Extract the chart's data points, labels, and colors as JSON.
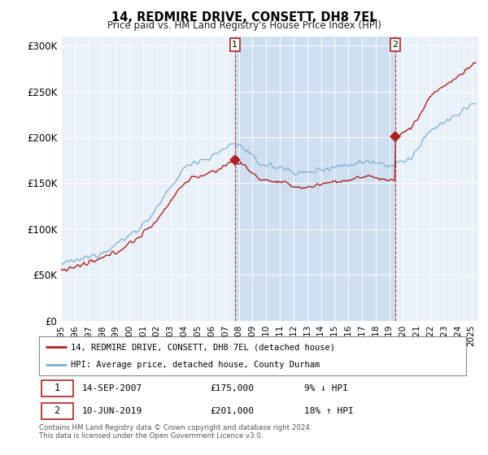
{
  "title": "14, REDMIRE DRIVE, CONSETT, DH8 7EL",
  "subtitle": "Price paid vs. HM Land Registry's House Price Index (HPI)",
  "ylim": [
    0,
    310000
  ],
  "yticks": [
    0,
    50000,
    100000,
    150000,
    200000,
    250000,
    300000
  ],
  "ytick_labels": [
    "£0",
    "£50K",
    "£100K",
    "£150K",
    "£200K",
    "£250K",
    "£300K"
  ],
  "bg_color": "#e8f0f8",
  "shade_color": "#cddff0",
  "hpi_color": "#7bafd4",
  "price_color": "#b22020",
  "annotation1_date": "14-SEP-2007",
  "annotation1_price": 175000,
  "annotation1_pct": "9% ↓ HPI",
  "annotation2_date": "10-JUN-2019",
  "annotation2_price": 201000,
  "annotation2_pct": "18% ↑ HPI",
  "legend_label1": "14, REDMIRE DRIVE, CONSETT, DH8 7EL (detached house)",
  "legend_label2": "HPI: Average price, detached house, County Durham",
  "footer": "Contains HM Land Registry data © Crown copyright and database right 2024.\nThis data is licensed under the Open Government Licence v3.0.",
  "sale1_x": 2007.71,
  "sale1_y": 175000,
  "sale2_x": 2019.44,
  "sale2_y": 201000,
  "xmin": 1995.0,
  "xmax": 2025.5
}
